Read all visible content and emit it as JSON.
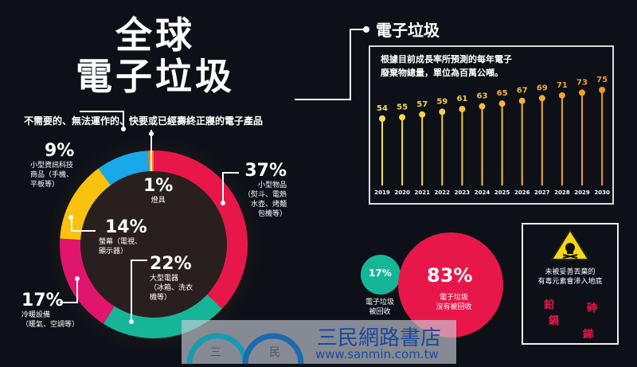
{
  "title_line1": "全球",
  "title_line2": "電子垃圾",
  "subtitle": "不需要的、無法運作的、快要或已經壽終正寢的電子產品",
  "right_title": "電子垃圾",
  "forecast_note_line1": "根據目前成長率所預測的每年電子",
  "forecast_note_line2": "廢棄物總量，單位為百萬公噸。",
  "colors": {
    "red": "#e8174a",
    "teal": "#17b597",
    "pink": "#e0156e",
    "yellow": "#f8c20f",
    "blue": "#19a8e8",
    "orange": "#f08020",
    "background": "#0d1117"
  },
  "chart_data": [
    {
      "type": "pie",
      "style": "donut",
      "start": "top, clockwise",
      "slices": [
        {
          "pct": "37%",
          "value": 37,
          "label": "小型物品",
          "detail1": "（熨斗、電熱",
          "detail2": "水壺、烤麵",
          "detail3": "包機等）",
          "color": "#e8174a"
        },
        {
          "pct": "22%",
          "value": 22,
          "label": "大型電器",
          "detail1": "（冰箱、洗衣",
          "detail2": "機等）",
          "color": "#17b597"
        },
        {
          "pct": "17%",
          "value": 17,
          "label": "冷暖設備",
          "detail1": "（暖氣、空調等）",
          "color": "#e0156e"
        },
        {
          "pct": "14%",
          "value": 14,
          "label": "螢幕（電視、",
          "detail1": "顯示器）",
          "color": "#f8c20f"
        },
        {
          "pct": "9%",
          "value": 9,
          "label": "小型資訊科技",
          "detail1": "商品（手機、",
          "detail2": "平板等）",
          "color": "#19a8e8"
        },
        {
          "pct": "1%",
          "value": 1,
          "label": "燈具",
          "color": "#f08020"
        }
      ]
    },
    {
      "type": "bar",
      "style": "lollipop",
      "categories": [
        "2019",
        "2020",
        "2021",
        "2022",
        "2023",
        "2024",
        "2025",
        "2026",
        "2027",
        "2028",
        "2029",
        "2030"
      ],
      "values": [
        54,
        55,
        57,
        59,
        61,
        63,
        65,
        67,
        69,
        71,
        73,
        75
      ],
      "unit": "百萬公噸",
      "color_start": "#f5e05a",
      "color_end": "#f0962a"
    },
    {
      "type": "bubble",
      "items": [
        {
          "pct": "17%",
          "value": 17,
          "label1": "電子垃圾",
          "label2": "被回收",
          "color": "#17b597"
        },
        {
          "pct": "83%",
          "value": 83,
          "label1": "電子垃圾",
          "label2": "沒有被回收",
          "color": "#e8174a"
        }
      ]
    }
  ],
  "hazard": {
    "icon": "skull-warning-icon",
    "line1": "未被妥善丟棄的",
    "line2": "有毒元素會滲入地底",
    "elements": [
      "鉛",
      "砷",
      "鎘",
      "銻"
    ]
  },
  "watermark": {
    "text": "三民網路書店",
    "url": "www.sanmin.com.tw",
    "logo1": "三",
    "logo2": "民"
  }
}
